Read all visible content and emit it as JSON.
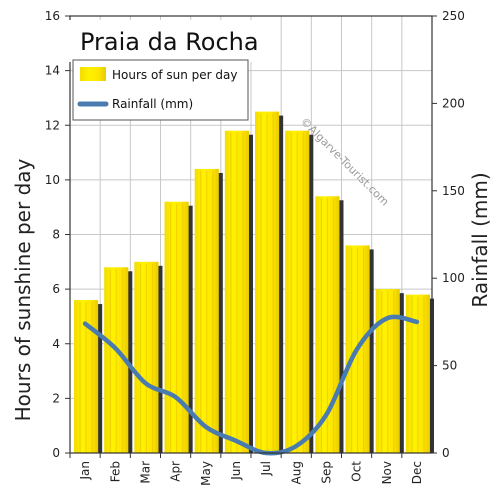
{
  "chart_data": {
    "type": "bar",
    "title": "Praia da Rocha",
    "categories": [
      "Jan",
      "Feb",
      "Mar",
      "Apr",
      "May",
      "Jun",
      "Jul",
      "Aug",
      "Sep",
      "Oct",
      "Nov",
      "Dec"
    ],
    "series": [
      {
        "name": "Hours of sun per day",
        "type": "bar",
        "axis": "left",
        "values": [
          5.6,
          6.8,
          7.0,
          9.2,
          10.4,
          11.8,
          12.5,
          11.8,
          9.4,
          7.6,
          6.0,
          5.8
        ],
        "color": "#ffee00"
      },
      {
        "name": "Rainfall (mm)",
        "type": "line",
        "axis": "right",
        "values": [
          74,
          60,
          40,
          32,
          15,
          7,
          0,
          4,
          22,
          59,
          77,
          75
        ],
        "color": "#4a7bb0"
      }
    ],
    "ylabel": "Hours of sunshine per day",
    "ylim": [
      0,
      16
    ],
    "yticks": [
      "0",
      "2",
      "4",
      "6",
      "8",
      "10",
      "12",
      "14",
      "16"
    ],
    "y2label": "Rainfall (mm)",
    "y2lim": [
      0,
      250
    ],
    "y2ticks": [
      "0",
      "50",
      "100",
      "150",
      "200",
      "250"
    ],
    "grid": true,
    "legend_position": "top-left",
    "watermark": "©Algarve-Tourist.com"
  }
}
